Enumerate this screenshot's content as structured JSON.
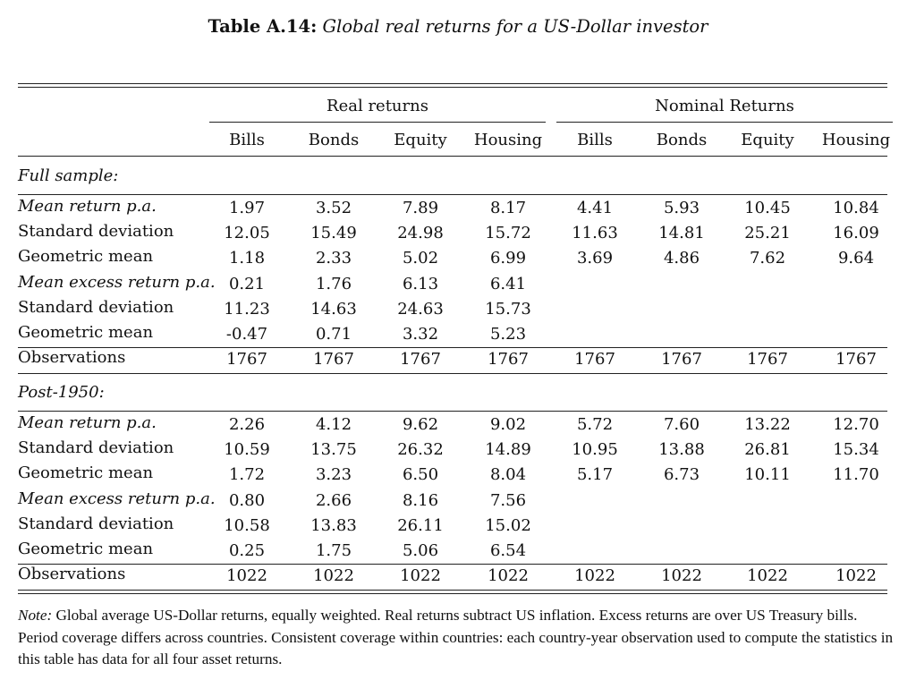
{
  "caption": {
    "label": "Table A.14:",
    "title": "Global real returns for a US-Dollar investor"
  },
  "groups": [
    "Real returns",
    "Nominal Returns"
  ],
  "columns": [
    "Bills",
    "Bonds",
    "Equity",
    "Housing",
    "Bills",
    "Bonds",
    "Equity",
    "Housing"
  ],
  "sections": [
    {
      "title": "Full sample:",
      "rows": [
        {
          "label": "Mean return p.a.",
          "italic": true,
          "values": [
            "1.97",
            "3.52",
            "7.89",
            "8.17",
            "4.41",
            "5.93",
            "10.45",
            "10.84"
          ]
        },
        {
          "label": "Standard deviation",
          "italic": false,
          "values": [
            "12.05",
            "15.49",
            "24.98",
            "15.72",
            "11.63",
            "14.81",
            "25.21",
            "16.09"
          ]
        },
        {
          "label": "Geometric mean",
          "italic": false,
          "values": [
            "1.18",
            "2.33",
            "5.02",
            "6.99",
            "3.69",
            "4.86",
            "7.62",
            "9.64"
          ]
        },
        {
          "label": "Mean excess return p.a.",
          "italic": true,
          "values": [
            "0.21",
            "1.76",
            "6.13",
            "6.41",
            "",
            "",
            "",
            ""
          ]
        },
        {
          "label": "Standard deviation",
          "italic": false,
          "values": [
            "11.23",
            "14.63",
            "24.63",
            "15.73",
            "",
            "",
            "",
            ""
          ]
        },
        {
          "label": "Geometric mean",
          "italic": false,
          "values": [
            "-0.47",
            "0.71",
            "3.32",
            "5.23",
            "",
            "",
            "",
            ""
          ]
        }
      ],
      "observations": {
        "label": "Observations",
        "values": [
          "1767",
          "1767",
          "1767",
          "1767",
          "1767",
          "1767",
          "1767",
          "1767"
        ]
      }
    },
    {
      "title": "Post-1950:",
      "rows": [
        {
          "label": "Mean return p.a.",
          "italic": true,
          "values": [
            "2.26",
            "4.12",
            "9.62",
            "9.02",
            "5.72",
            "7.60",
            "13.22",
            "12.70"
          ]
        },
        {
          "label": "Standard deviation",
          "italic": false,
          "values": [
            "10.59",
            "13.75",
            "26.32",
            "14.89",
            "10.95",
            "13.88",
            "26.81",
            "15.34"
          ]
        },
        {
          "label": "Geometric mean",
          "italic": false,
          "values": [
            "1.72",
            "3.23",
            "6.50",
            "8.04",
            "5.17",
            "6.73",
            "10.11",
            "11.70"
          ]
        },
        {
          "label": "Mean excess return p.a.",
          "italic": true,
          "values": [
            "0.80",
            "2.66",
            "8.16",
            "7.56",
            "",
            "",
            "",
            ""
          ]
        },
        {
          "label": "Standard deviation",
          "italic": false,
          "values": [
            "10.58",
            "13.83",
            "26.11",
            "15.02",
            "",
            "",
            "",
            ""
          ]
        },
        {
          "label": "Geometric mean",
          "italic": false,
          "values": [
            "0.25",
            "1.75",
            "5.06",
            "6.54",
            "",
            "",
            "",
            ""
          ]
        }
      ],
      "observations": {
        "label": "Observations",
        "values": [
          "1022",
          "1022",
          "1022",
          "1022",
          "1022",
          "1022",
          "1022",
          "1022"
        ]
      }
    }
  ],
  "note": {
    "label": "Note:",
    "text": "Global average US-Dollar returns, equally weighted. Real returns subtract US inflation. Excess returns are over US Treasury bills. Period coverage differs across countries. Consistent coverage within countries: each country-year observation used to compute the statistics in this table has data for all four asset returns."
  }
}
